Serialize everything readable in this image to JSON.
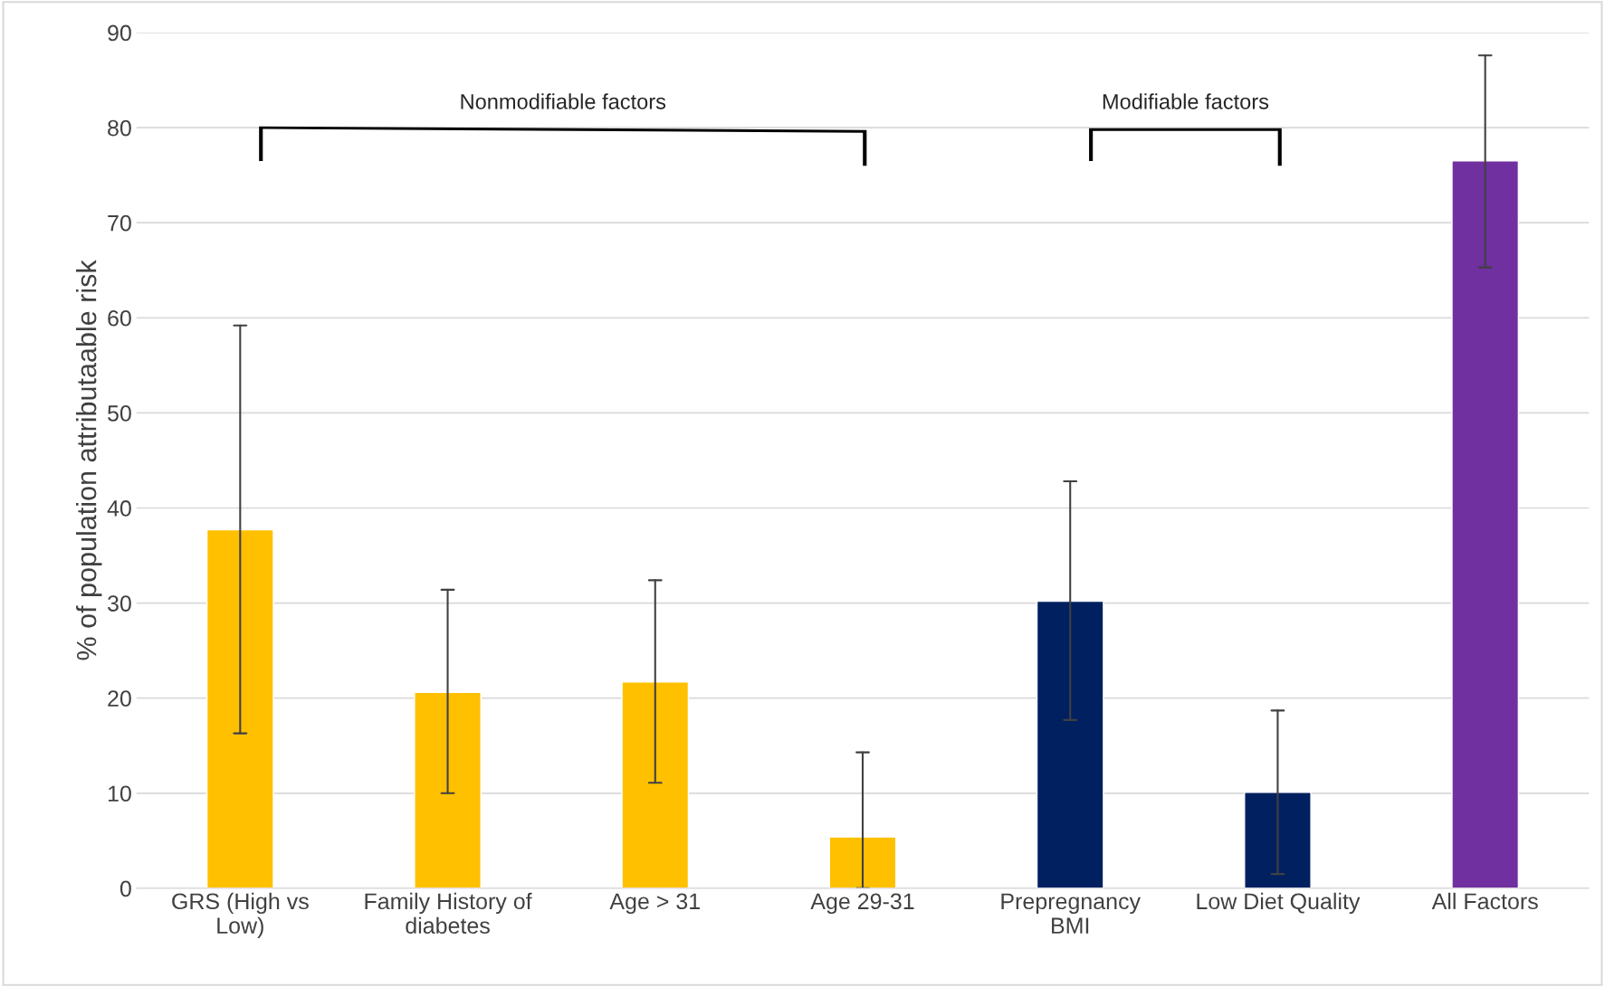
{
  "chart_data": {
    "type": "bar",
    "ylabel": "% of population attributaable risk",
    "categories": [
      "GRS (High vs\nLow)",
      "Family History of\ndiabetes",
      "Age > 31",
      "Age 29-31",
      "Prepregnancy\nBMI",
      "Low Diet Quality",
      "All Factors"
    ],
    "values": [
      37.7,
      20.6,
      21.7,
      5.4,
      30.2,
      10.1,
      76.5
    ],
    "colors": [
      "#ffc000",
      "#ffc000",
      "#ffc000",
      "#ffc000",
      "#002060",
      "#002060",
      "#7030a0"
    ],
    "errors": [
      [
        16.3,
        59.2
      ],
      [
        10.0,
        31.4
      ],
      [
        11.1,
        32.4
      ],
      [
        0,
        14.3
      ],
      [
        17.7,
        42.8
      ],
      [
        1.5,
        18.7
      ],
      [
        65.3,
        87.6
      ]
    ],
    "annotations": [
      "Nonmodifiable factors",
      "Modifiable factors"
    ],
    "ylim": [
      0,
      90
    ],
    "yticks": [
      0,
      10,
      20,
      30,
      40,
      50,
      60,
      70,
      80,
      90
    ],
    "grid": "y",
    "legend": false
  }
}
